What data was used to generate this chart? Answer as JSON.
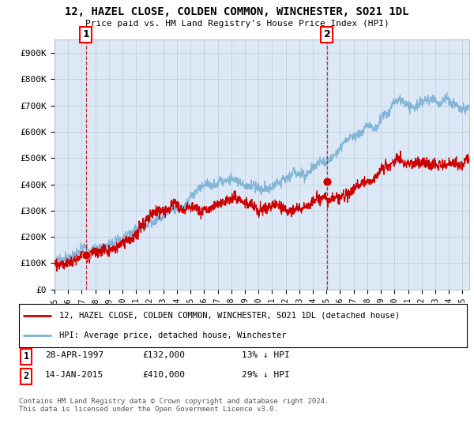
{
  "title": "12, HAZEL CLOSE, COLDEN COMMON, WINCHESTER, SO21 1DL",
  "subtitle": "Price paid vs. HM Land Registry's House Price Index (HPI)",
  "ylim": [
    0,
    950000
  ],
  "xlim_start": 1995.0,
  "xlim_end": 2025.5,
  "sale1_x": 1997.32,
  "sale1_y": 132000,
  "sale2_x": 2015.04,
  "sale2_y": 410000,
  "legend_line1": "12, HAZEL CLOSE, COLDEN COMMON, WINCHESTER, SO21 1DL (detached house)",
  "legend_line2": "HPI: Average price, detached house, Winchester",
  "footer": "Contains HM Land Registry data © Crown copyright and database right 2024.\nThis data is licensed under the Open Government Licence v3.0.",
  "line_color_red": "#cc0000",
  "line_color_blue": "#7ab0d4",
  "plot_bg": "#dce8f5",
  "grid_color": "#c0cfe0"
}
